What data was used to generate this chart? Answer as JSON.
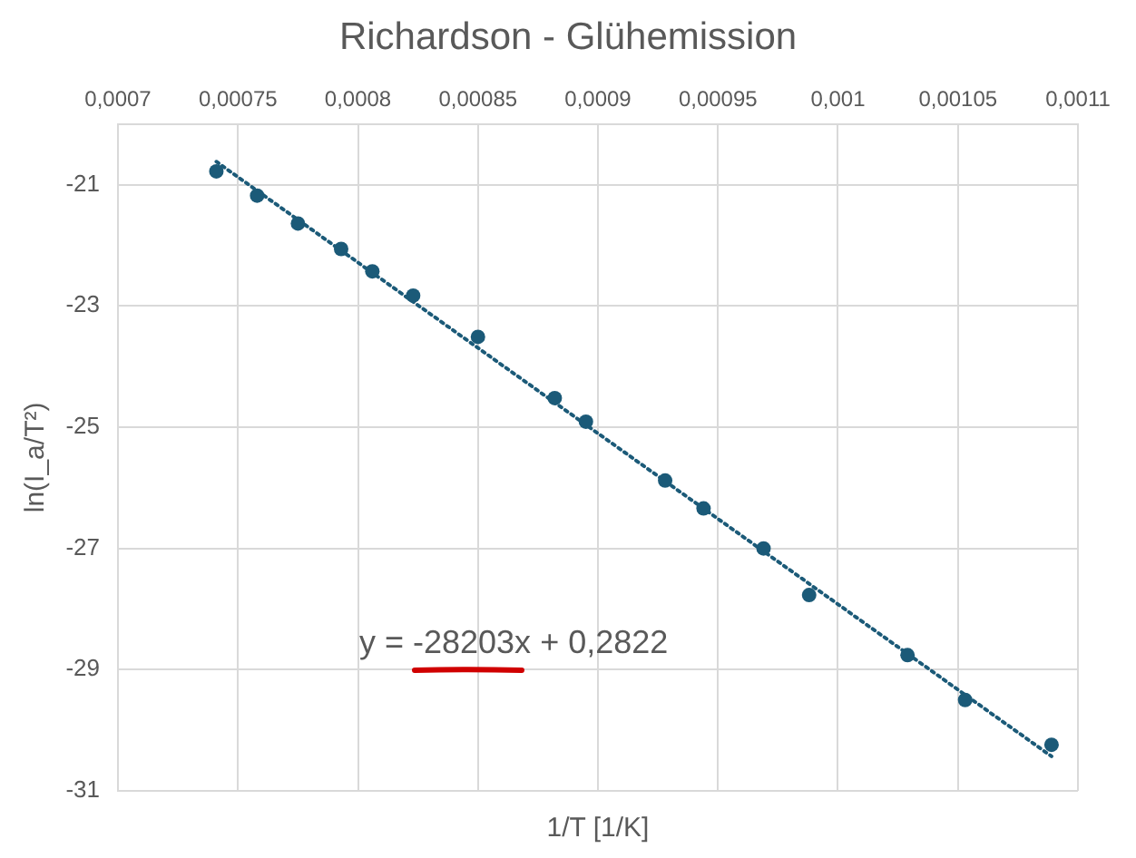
{
  "chart_data": {
    "type": "scatter",
    "title": "Richardson - Glühemission",
    "xlabel": "1/T [1/K]",
    "ylabel": "ln(I_a/T²)",
    "annotations": [
      "y = -28203x + 0,2822"
    ],
    "series": [
      {
        "color": "#1b5a78",
        "marker": "circle",
        "x": [
          0.000741,
          0.000758,
          0.000775,
          0.000793,
          0.000806,
          0.000823,
          0.00085,
          0.000882,
          0.000895,
          0.000928,
          0.000944,
          0.000969,
          0.000988,
          0.001029,
          0.001053,
          0.001089
        ],
        "values": [
          -20.78,
          -21.18,
          -21.64,
          -22.06,
          -22.43,
          -22.83,
          -23.51,
          -24.52,
          -24.91,
          -25.88,
          -26.34,
          -27.0,
          -27.77,
          -28.76,
          -29.5,
          -30.24
        ]
      },
      {
        "type": "line",
        "color": "#1b5a78",
        "marker": "none",
        "line_style": "dotted",
        "x": [
          0.000741,
          0.001089
        ],
        "values": [
          -20.62,
          -30.43
        ]
      }
    ],
    "xlim": [
      0.0007,
      0.0011
    ],
    "xticks": [
      {
        "value": 0.0007,
        "label": "0,0007"
      },
      {
        "value": 0.00075,
        "label": "0,00075"
      },
      {
        "value": 0.0008,
        "label": "0,0008"
      },
      {
        "value": 0.00085,
        "label": "0,00085"
      },
      {
        "value": 0.0009,
        "label": "0,0009"
      },
      {
        "value": 0.00095,
        "label": "0,00095"
      },
      {
        "value": 0.001,
        "label": "0,001"
      },
      {
        "value": 0.00105,
        "label": "0,00105"
      },
      {
        "value": 0.0011,
        "label": "0,0011"
      }
    ],
    "ylim": [
      -31,
      -20
    ],
    "yticks": [
      -31,
      -29,
      -27,
      -25,
      -23,
      -21
    ],
    "grid": true,
    "legend": false
  }
}
